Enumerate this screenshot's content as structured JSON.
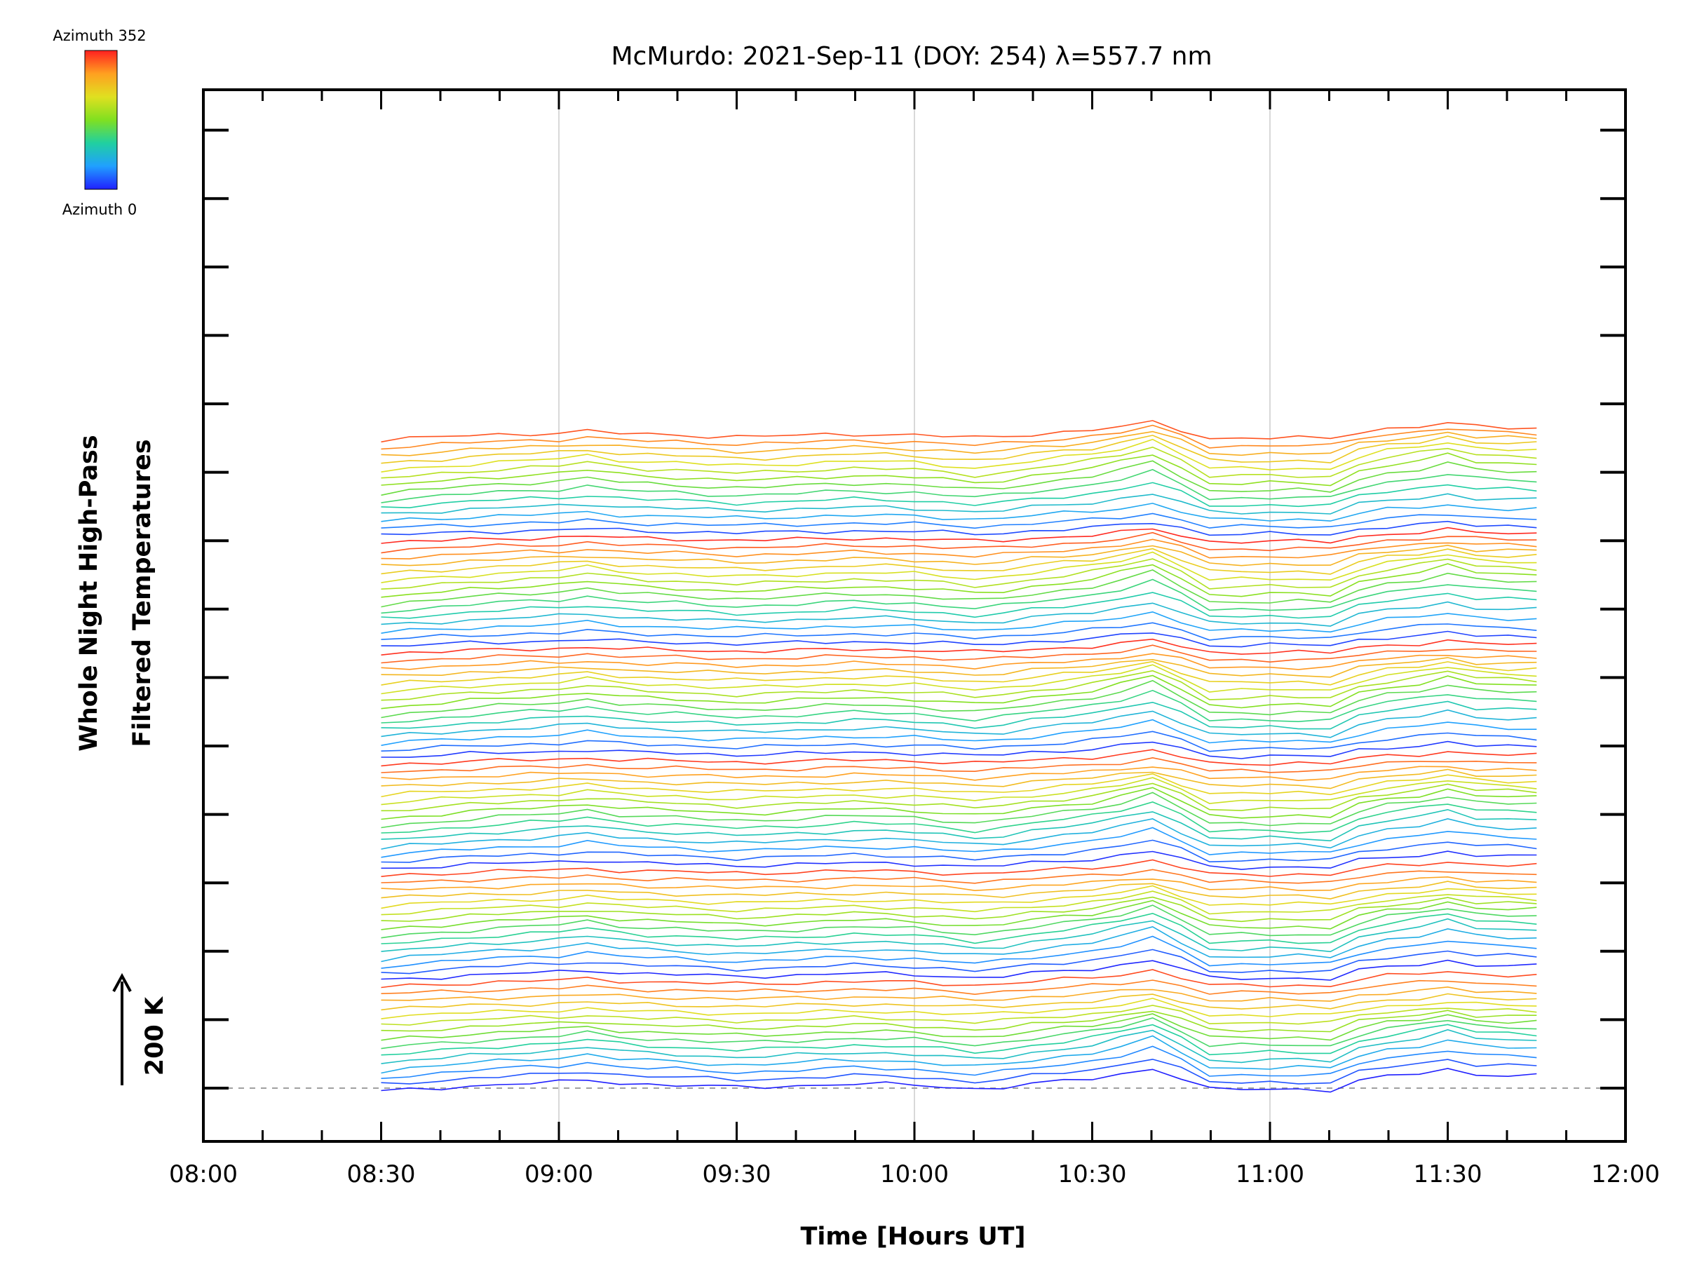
{
  "chart_data": {
    "type": "line",
    "title": "McMurdo: 2021-Sep-11 (DOY: 254) λ=557.7 nm",
    "xlabel": "Time [Hours UT]",
    "ylabel_line1": "Whole Night High-Pass",
    "ylabel_line2": "Filtered Temperatures",
    "scale_label": "200 K",
    "xlim": [
      8.0,
      12.0
    ],
    "x_ticks": [
      8.0,
      8.5,
      9.0,
      9.5,
      10.0,
      10.5,
      11.0,
      11.5,
      12.0
    ],
    "x_tick_labels": [
      "08:00",
      "08:30",
      "09:00",
      "09:30",
      "10:00",
      "10:30",
      "11:00",
      "11:30",
      "12:00"
    ],
    "colorbar": {
      "top_label": "Azimuth 352",
      "bottom_label": "Azimuth 0",
      "colors": [
        "#2020ff",
        "#20a0ff",
        "#20d0a0",
        "#80e020",
        "#e0e020",
        "#ffa020",
        "#ff2020"
      ]
    },
    "n_series": 89,
    "azimuth_cycles": 6,
    "series_offset_K": 30,
    "times": [
      8.5,
      8.58,
      8.67,
      8.75,
      8.83,
      8.92,
      9.0,
      9.08,
      9.17,
      9.25,
      9.33,
      9.42,
      9.5,
      9.58,
      9.67,
      9.75,
      9.83,
      9.92,
      10.0,
      10.08,
      10.17,
      10.25,
      10.33,
      10.42,
      10.5,
      10.58,
      10.67,
      10.75,
      10.83,
      10.92,
      11.0,
      11.08,
      11.17,
      11.25,
      11.33,
      11.42,
      11.5,
      11.58,
      11.67,
      11.75
    ],
    "base_profile_K": [
      -20,
      -8,
      2,
      12,
      20,
      28,
      34,
      48,
      30,
      22,
      18,
      10,
      5,
      8,
      14,
      20,
      25,
      22,
      18,
      8,
      -4,
      6,
      24,
      40,
      55,
      80,
      115,
      58,
      -8,
      -8,
      -6,
      -6,
      -10,
      42,
      68,
      84,
      108,
      82,
      76,
      72
    ]
  }
}
